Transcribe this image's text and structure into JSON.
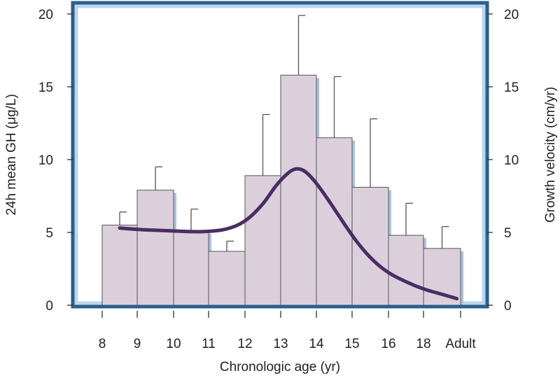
{
  "chart_data": {
    "type": "bar",
    "categories": [
      "8",
      "9",
      "10",
      "11",
      "12",
      "13",
      "14",
      "15",
      "16",
      "18",
      "Adult"
    ],
    "bars": [
      {
        "label": "8-9",
        "value": 5.5,
        "error_upper": 6.4
      },
      {
        "label": "9-10",
        "value": 7.9,
        "error_upper": 9.5
      },
      {
        "label": "10-11",
        "value": 5.1,
        "error_upper": 6.6
      },
      {
        "label": "11-12",
        "value": 3.7,
        "error_upper": 4.4
      },
      {
        "label": "12-13",
        "value": 8.9,
        "error_upper": 13.1
      },
      {
        "label": "13-14",
        "value": 15.8,
        "error_upper": 19.9
      },
      {
        "label": "14-15",
        "value": 11.5,
        "error_upper": 15.7
      },
      {
        "label": "15-16",
        "value": 8.1,
        "error_upper": 12.8
      },
      {
        "label": "16-18",
        "value": 4.8,
        "error_upper": 7.0
      },
      {
        "label": "18-Adult",
        "value": 3.9,
        "error_upper": 5.4
      }
    ],
    "growth_velocity_curve": [
      [
        8.5,
        5.3
      ],
      [
        9.0,
        5.2
      ],
      [
        9.5,
        5.15
      ],
      [
        10.0,
        5.1
      ],
      [
        10.5,
        5.05
      ],
      [
        11.0,
        5.05
      ],
      [
        11.5,
        5.2
      ],
      [
        12.0,
        5.7
      ],
      [
        12.5,
        6.9
      ],
      [
        12.8,
        8.0
      ],
      [
        13.0,
        8.6
      ],
      [
        13.3,
        9.3
      ],
      [
        13.5,
        9.4
      ],
      [
        13.7,
        9.2
      ],
      [
        14.0,
        8.4
      ],
      [
        14.4,
        7.0
      ],
      [
        14.8,
        5.5
      ],
      [
        15.2,
        4.1
      ],
      [
        15.6,
        3.0
      ],
      [
        16.0,
        2.2
      ],
      [
        16.5,
        1.6
      ],
      [
        17.0,
        1.1
      ],
      [
        17.5,
        0.75
      ],
      [
        17.9,
        0.45
      ]
    ],
    "xlabel": "Chronologic age (yr)",
    "ylabel_left": "24h mean GH (μg/L)",
    "ylabel_right": "Growth velocity (cm/yr)",
    "ylim_left": [
      0,
      20
    ],
    "ylim_right": [
      0,
      20
    ],
    "yticks_left": [
      "0",
      "5",
      "10",
      "15",
      "20"
    ],
    "yticks_right": [
      "0",
      "5",
      "10",
      "15",
      "20"
    ],
    "grid": false,
    "colors": {
      "bar_fill": "#dccfdc",
      "bar_shadow": "#a9c3e0",
      "bar_stroke": "#555555",
      "curve": "#4a2d63",
      "plot_frame": "#2b5f8c",
      "plot_inner_border": "#b9d6ec"
    }
  }
}
